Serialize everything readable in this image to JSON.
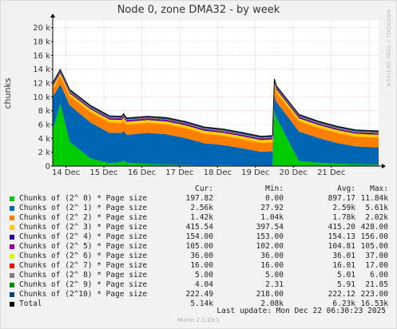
{
  "chart_data": {
    "type": "area",
    "title": "Node 0, zone DMA32 - by week",
    "ylabel": "chunks",
    "side_label": "RRDTOOL / TOBI OETIKER",
    "ylim": [
      0,
      21000
    ],
    "yticks": [
      "0",
      "2 k",
      "4 k",
      "6 k",
      "8 k",
      "10 k",
      "12 k",
      "14 k",
      "16 k",
      "18 k",
      "20 k"
    ],
    "xticks": [
      "14 Dec",
      "15 Dec",
      "16 Dec",
      "17 Dec",
      "18 Dec",
      "19 Dec",
      "20 Dec",
      "21 Dec"
    ],
    "x": [
      0,
      0.2,
      0.45,
      1,
      1.5,
      1.82,
      1.87,
      1.95,
      2.5,
      3,
      3.5,
      4,
      4.5,
      5,
      5.5,
      5.8,
      5.85,
      5.9,
      6.5,
      7,
      7.5,
      8,
      8.6
    ],
    "series": [
      {
        "name": "Chunks of (2^ 0) * Page size",
        "color": "#00cc00",
        "values": [
          5200,
          9000,
          3500,
          1100,
          400,
          600,
          800,
          500,
          300,
          200,
          150,
          100,
          150,
          100,
          50,
          50,
          8000,
          7000,
          700,
          500,
          350,
          250,
          200
        ]
      },
      {
        "name": "Chunks of (2^ 1) * Page size",
        "color": "#0066b3",
        "values": [
          4800,
          2800,
          5300,
          5200,
          4400,
          4200,
          4300,
          4000,
          4500,
          4400,
          3900,
          3200,
          2900,
          2500,
          2000,
          2100,
          2300,
          2300,
          4300,
          3600,
          3000,
          2600,
          2500
        ]
      },
      {
        "name": "Chunks of (2^ 2) * Page size",
        "color": "#ff8000",
        "values": [
          1100,
          1200,
          1300,
          1500,
          1500,
          1450,
          1500,
          1500,
          1450,
          1450,
          1450,
          1400,
          1350,
          1300,
          1300,
          1300,
          1350,
          1350,
          1500,
          1450,
          1450,
          1420,
          1420
        ]
      },
      {
        "name": "Chunks of (2^ 3) * Page size",
        "color": "#ffcc00",
        "values": [
          410,
          410,
          410,
          410,
          410,
          410,
          410,
          410,
          410,
          410,
          410,
          410,
          410,
          410,
          410,
          410,
          410,
          410,
          415,
          415,
          415,
          415,
          415
        ]
      },
      {
        "name": "Chunks of (2^ 4) * Page size",
        "color": "#330099",
        "values": [
          154,
          154,
          154,
          154,
          154,
          154,
          154,
          154,
          154,
          154,
          154,
          154,
          154,
          154,
          154,
          154,
          154,
          154,
          154,
          154,
          154,
          154,
          154
        ]
      },
      {
        "name": "Chunks of (2^ 5) * Page size",
        "color": "#990099",
        "values": [
          105,
          105,
          105,
          105,
          105,
          105,
          105,
          105,
          105,
          105,
          105,
          105,
          105,
          105,
          105,
          105,
          105,
          105,
          105,
          105,
          105,
          105,
          105
        ]
      },
      {
        "name": "Chunks of (2^ 6) * Page size",
        "color": "#ccff00",
        "values": [
          36,
          36,
          36,
          36,
          36,
          36,
          36,
          36,
          36,
          36,
          36,
          36,
          36,
          36,
          36,
          36,
          36,
          36,
          36,
          36,
          36,
          36,
          36
        ]
      },
      {
        "name": "Chunks of (2^ 7) * Page size",
        "color": "#ff0000",
        "values": [
          16,
          16,
          16,
          16,
          16,
          16,
          16,
          16,
          16,
          16,
          16,
          16,
          16,
          16,
          16,
          16,
          16,
          16,
          16,
          16,
          16,
          16,
          16
        ]
      },
      {
        "name": "Chunks of (2^ 8) * Page size",
        "color": "#808080",
        "values": [
          5,
          5,
          5,
          5,
          5,
          5,
          5,
          5,
          5,
          5,
          5,
          5,
          5,
          5,
          5,
          5,
          5,
          5,
          5,
          5,
          5,
          5,
          5
        ]
      },
      {
        "name": "Chunks of (2^ 9) * Page size",
        "color": "#008f00",
        "values": [
          5,
          5,
          5,
          5,
          5,
          5,
          5,
          5,
          5,
          5,
          5,
          5,
          5,
          5,
          5,
          5,
          5,
          5,
          5,
          5,
          5,
          5,
          5
        ]
      },
      {
        "name": "Chunks of (2^10) * Page size",
        "color": "#00487d",
        "values": [
          222,
          222,
          222,
          222,
          222,
          222,
          222,
          222,
          222,
          222,
          222,
          222,
          222,
          222,
          222,
          222,
          222,
          222,
          222,
          222,
          222,
          222,
          222
        ]
      }
    ],
    "total_color": "#000000",
    "grid": true
  },
  "legend": {
    "headers": {
      "cur": "Cur:",
      "min": "Min:",
      "avg": "Avg:",
      "max": "Max:"
    },
    "rows": [
      {
        "name": "Chunks of (2^ 0) * Page size",
        "color": "#00cc00",
        "cur": "197.82",
        "min": "0.00",
        "avg": "897.17",
        "max": "11.84k"
      },
      {
        "name": "Chunks of (2^ 1) * Page size",
        "color": "#0066b3",
        "cur": "2.56k",
        "min": "27.92",
        "avg": "2.59k",
        "max": "5.61k"
      },
      {
        "name": "Chunks of (2^ 2) * Page size",
        "color": "#ff8000",
        "cur": "1.42k",
        "min": "1.04k",
        "avg": "1.78k",
        "max": "2.02k"
      },
      {
        "name": "Chunks of (2^ 3) * Page size",
        "color": "#ffcc00",
        "cur": "415.54",
        "min": "397.54",
        "avg": "415.20",
        "max": "428.00"
      },
      {
        "name": "Chunks of (2^ 4) * Page size",
        "color": "#330099",
        "cur": "154.00",
        "min": "153.00",
        "avg": "154.13",
        "max": "156.00"
      },
      {
        "name": "Chunks of (2^ 5) * Page size",
        "color": "#990099",
        "cur": "105.00",
        "min": "102.00",
        "avg": "104.81",
        "max": "105.00"
      },
      {
        "name": "Chunks of (2^ 6) * Page size",
        "color": "#ccff00",
        "cur": "36.00",
        "min": "36.00",
        "avg": "36.01",
        "max": "37.00"
      },
      {
        "name": "Chunks of (2^ 7) * Page size",
        "color": "#ff0000",
        "cur": "16.00",
        "min": "16.00",
        "avg": "16.01",
        "max": "17.00"
      },
      {
        "name": "Chunks of (2^ 8) * Page size",
        "color": "#808080",
        "cur": "5.00",
        "min": "5.00",
        "avg": "5.01",
        "max": "6.00"
      },
      {
        "name": "Chunks of (2^ 9) * Page size",
        "color": "#008f00",
        "cur": "4.04",
        "min": "2.31",
        "avg": "5.91",
        "max": "21.85"
      },
      {
        "name": "Chunks of (2^10) * Page size",
        "color": "#00487d",
        "cur": "222.49",
        "min": "218.00",
        "avg": "222.12",
        "max": "223.00"
      },
      {
        "name": "Total",
        "color": "#000000",
        "cur": "5.14k",
        "min": "2.08k",
        "avg": "6.23k",
        "max": "16.53k"
      }
    ]
  },
  "last_update": "Last update: Mon Dec 22 06:30:23 2025",
  "footer": "Munin 2.0.33-1"
}
